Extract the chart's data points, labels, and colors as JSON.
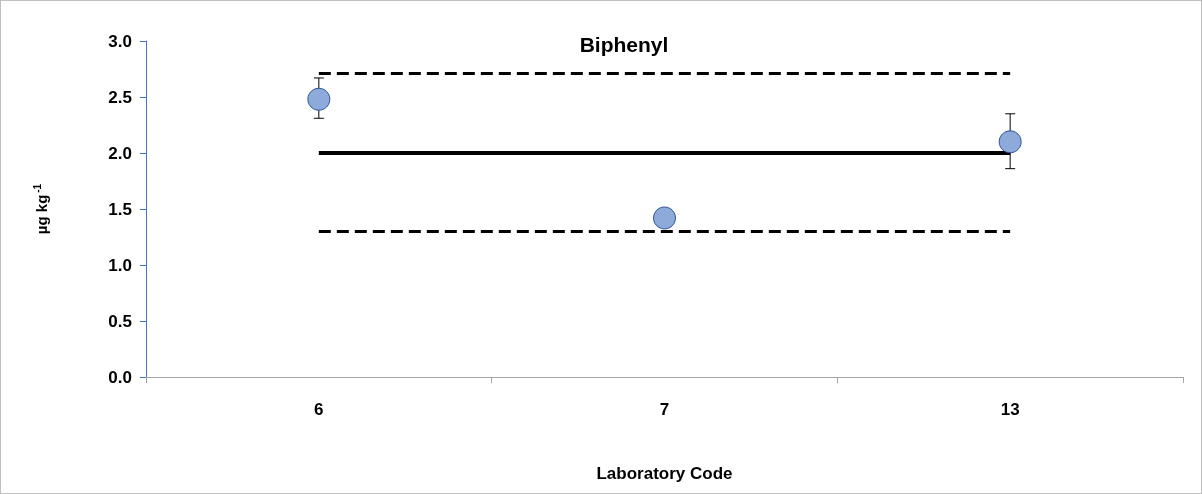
{
  "chart_data": {
    "type": "scatter",
    "title": "Biphenyl",
    "xlabel": "Laboratory Code",
    "ylabel": "µg kg$^{-1}$",
    "categories": [
      "6",
      "7",
      "13"
    ],
    "series": [
      {
        "type": "line",
        "color": "#000000",
        "values": [
          2.71,
          2.71,
          2.71
        ],
        "line_style": "dashed",
        "marker": "none"
      },
      {
        "type": "line",
        "color": "#000000",
        "values": [
          2.0,
          2.0,
          2.0
        ],
        "line_style": "solid",
        "marker": "none"
      },
      {
        "type": "line",
        "color": "#000000",
        "values": [
          1.3,
          1.3,
          1.3
        ],
        "line_style": "dashed",
        "marker": "none"
      },
      {
        "color": "#8eaadb",
        "values": [
          2.48,
          1.42,
          2.1
        ],
        "errors": [
          [
            2.31,
            2.67
          ],
          null,
          [
            1.86,
            2.35
          ]
        ],
        "marker": "circle"
      }
    ],
    "ylim": [
      0,
      3
    ],
    "yticks": [
      {
        "value": 0,
        "label": "0.0"
      },
      {
        "value": 0.5,
        "label": "0.5"
      },
      {
        "value": 1,
        "label": "1.0"
      },
      {
        "value": 1.5,
        "label": "1.5"
      },
      {
        "value": 2,
        "label": "2.0"
      },
      {
        "value": 2.5,
        "label": "2.5"
      },
      {
        "value": 3,
        "label": "3.0"
      }
    ],
    "grid": false
  }
}
